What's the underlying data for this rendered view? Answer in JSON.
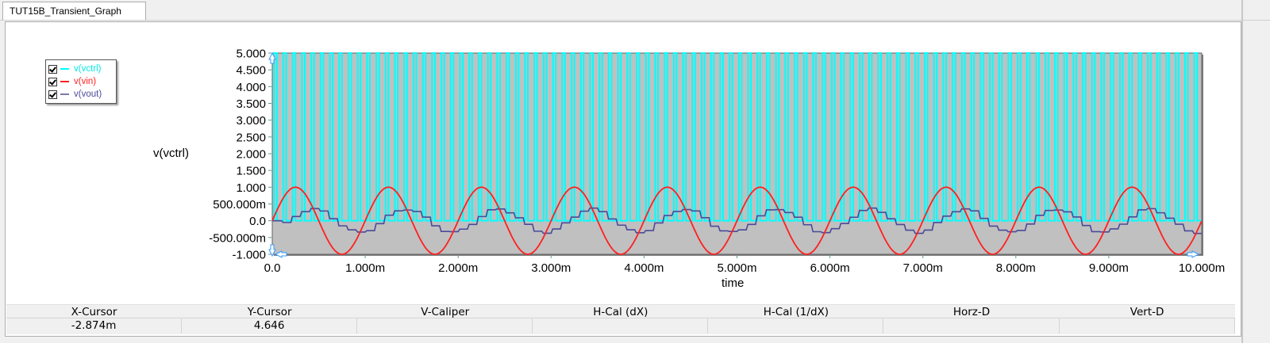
{
  "tab": {
    "title": "TUT15B_Transient_Graph"
  },
  "legend": {
    "items": [
      {
        "label": "v(vctrl)",
        "color": "#00ffff",
        "checked": true
      },
      {
        "label": "v(vin)",
        "color": "#ff2020",
        "checked": true
      },
      {
        "label": "v(vout)",
        "color": "#4a4a9a",
        "checked": true
      }
    ]
  },
  "axes": {
    "ylabel": "v(vctrl)",
    "xlabel": "time",
    "yticks": [
      "5.000",
      "4.500",
      "4.000",
      "3.500",
      "3.000",
      "2.500",
      "2.000",
      "1.500",
      "1.000",
      "500.000m",
      "0.0",
      "-500.000m",
      "-1.000"
    ],
    "xticks": [
      "0.0",
      "1.000m",
      "2.000m",
      "3.000m",
      "4.000m",
      "5.000m",
      "6.000m",
      "7.000m",
      "8.000m",
      "9.000m",
      "10.000m"
    ]
  },
  "colors": {
    "plot_bg": "#c0c0c0",
    "vctrl": "#00ffff",
    "vin": "#ff2020",
    "vout": "#4a4a9a",
    "marker": "#3399ff"
  },
  "cursor_table": {
    "headers": [
      "X-Cursor",
      "Y-Cursor",
      "V-Caliper",
      "H-Cal (dX)",
      "H-Cal (1/dX)",
      "Horz-D",
      "Vert-D"
    ],
    "values": [
      "-2.874m",
      "4.646",
      "",
      "",
      "",
      "",
      ""
    ]
  },
  "chart_data": {
    "type": "line",
    "title": "TUT15B_Transient_Graph",
    "xlabel": "time",
    "ylabel": "v(vctrl)",
    "xlim": [
      0,
      0.01
    ],
    "ylim": [
      -1.0,
      5.0
    ],
    "grid": false,
    "legend_position": "upper-left outside plot",
    "series": [
      {
        "name": "v(vctrl)",
        "kind": "pulse",
        "low": 0.0,
        "high": 5.0,
        "period_s": 0.0001,
        "pulse_width_s": 3e-05,
        "count": 100
      },
      {
        "name": "v(vin)",
        "kind": "sine",
        "amplitude": 1.0,
        "offset": 0.0,
        "frequency_hz": 1000,
        "phase_deg": 0
      },
      {
        "name": "v(vout)",
        "kind": "stepped sine (sample-and-hold)",
        "amplitude": 0.35,
        "offset": 0.0,
        "frequency_hz": 1000,
        "phase_lag_deg": 90,
        "step_s": 0.0001
      }
    ],
    "cursor": {
      "x": "-2.874m",
      "y": "4.646"
    }
  }
}
